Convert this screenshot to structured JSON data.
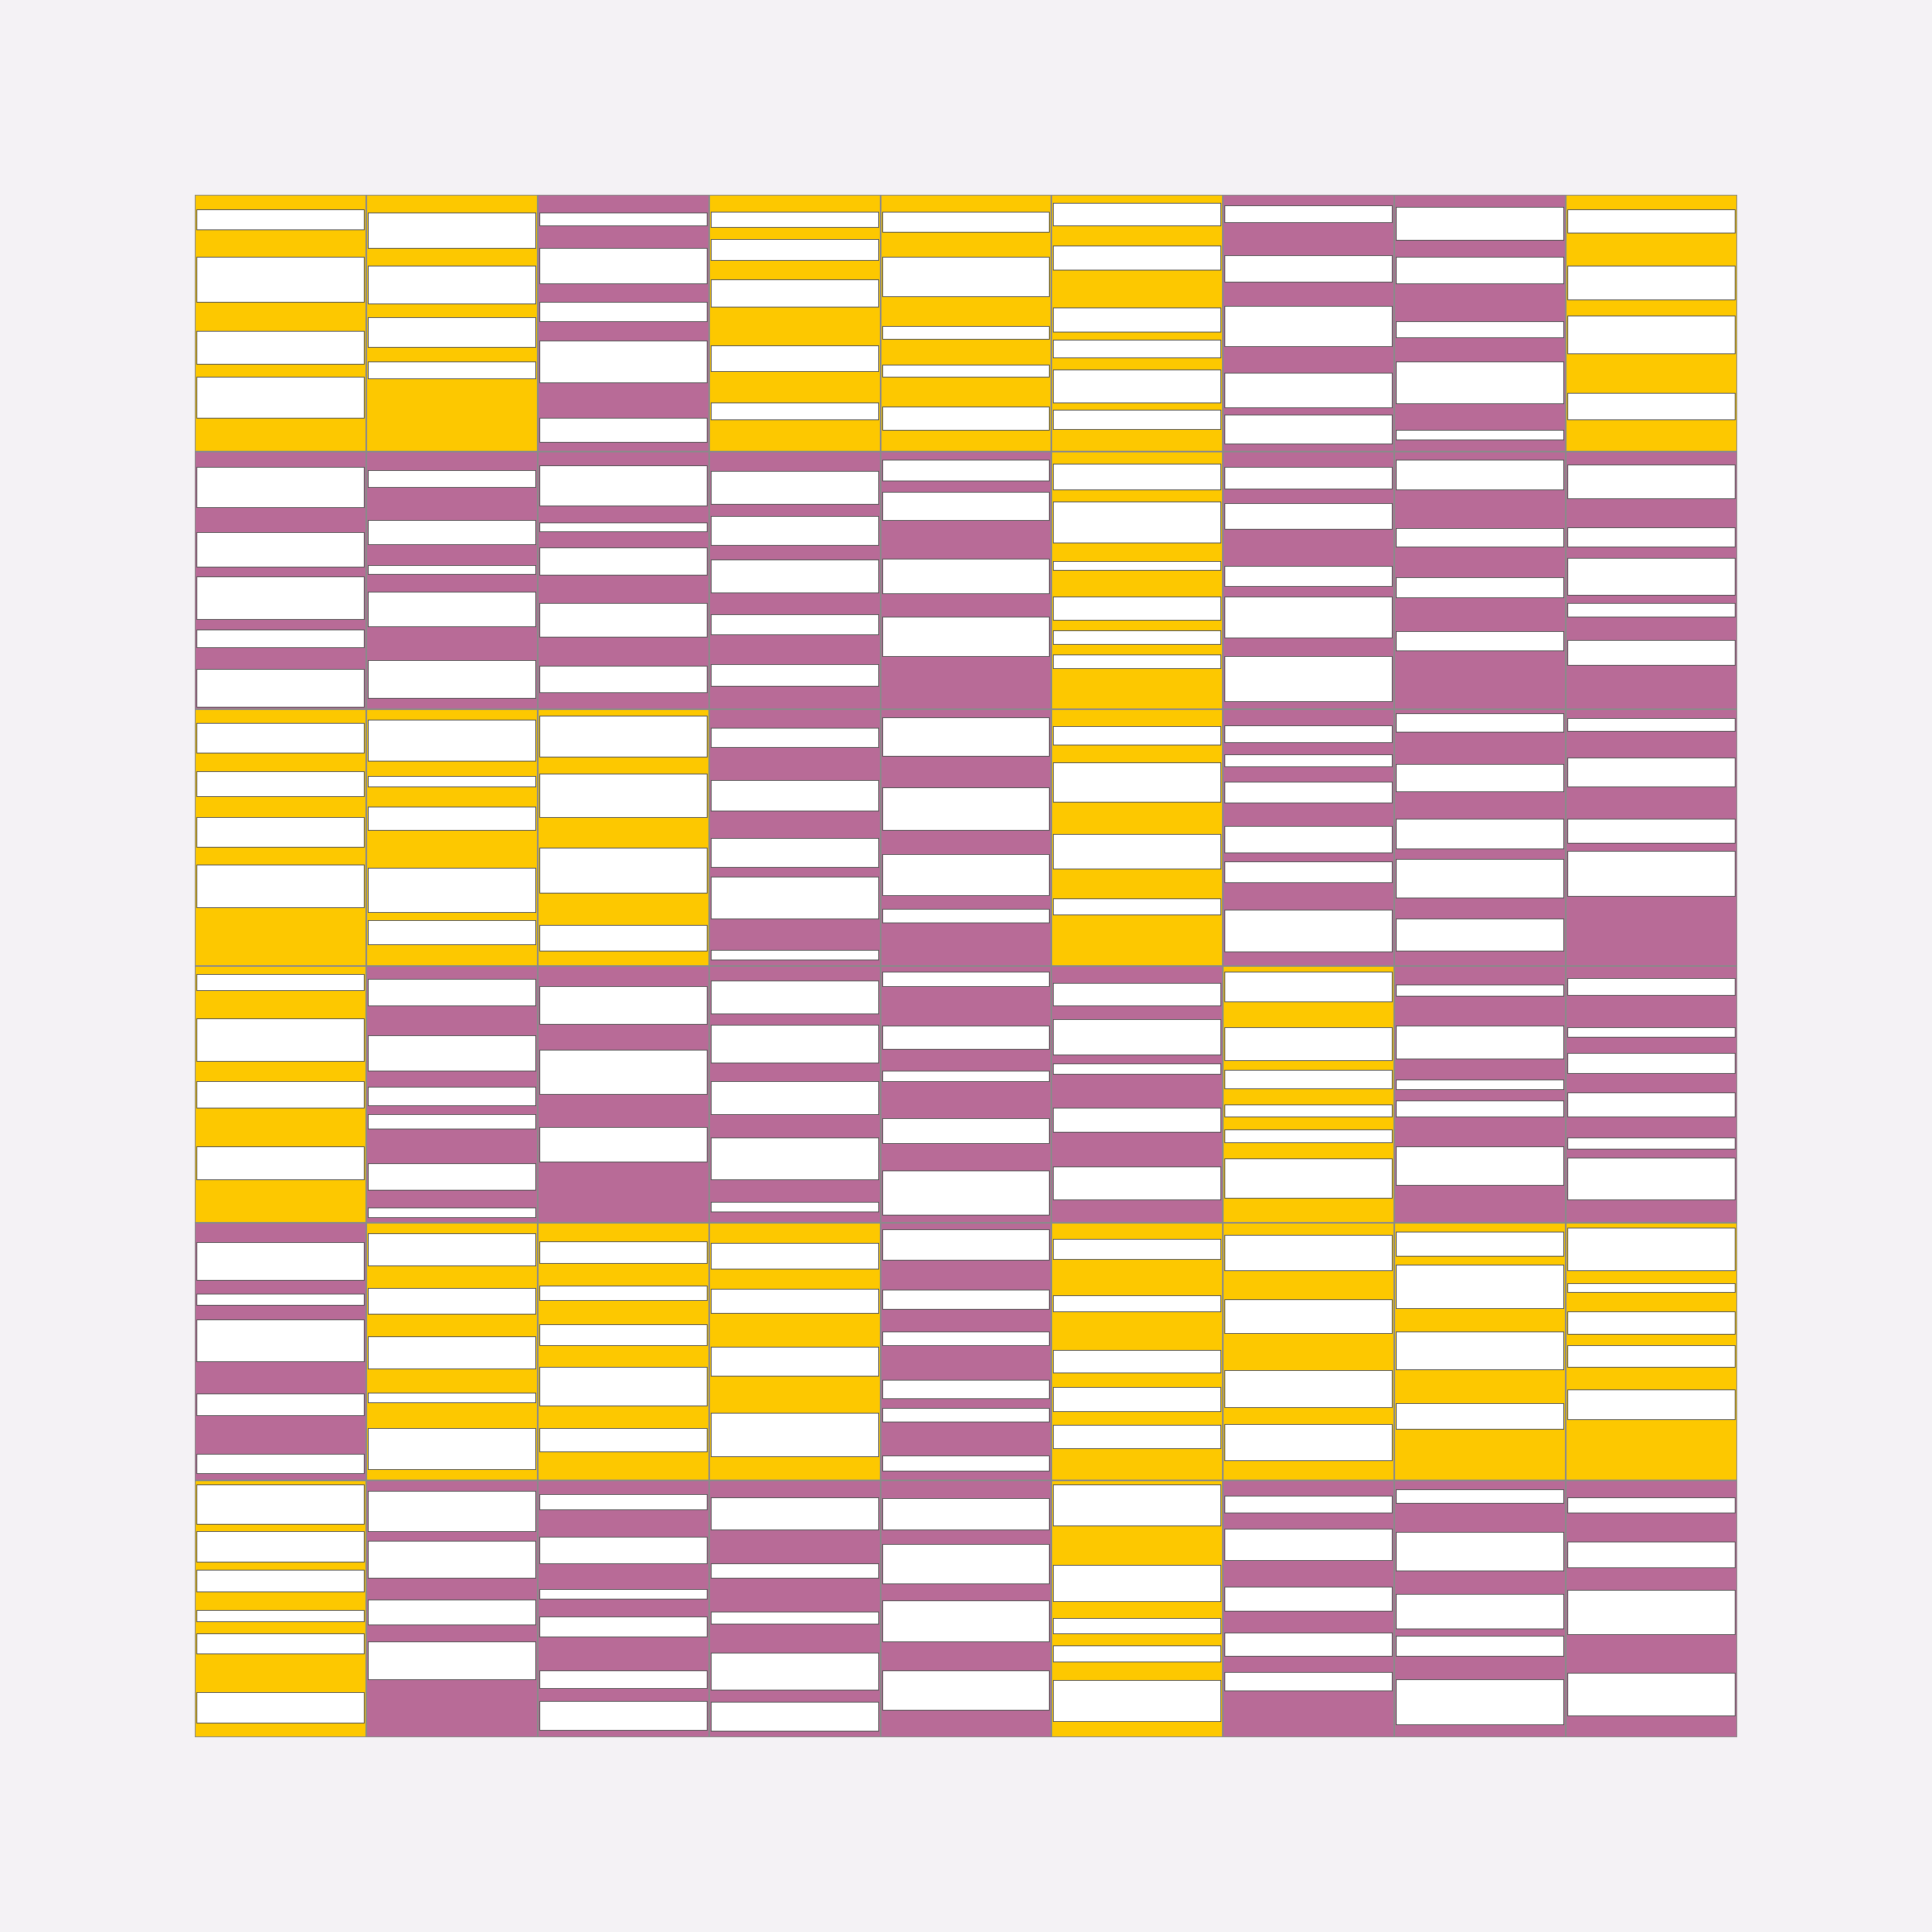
{
  "palette": {
    "yellow": "#FDC800",
    "purple": "#B86B97",
    "stripe": "#FFFFFF",
    "background": "#F4F2F5"
  },
  "grid": {
    "columns": 9,
    "rows": 6,
    "cells": [
      [
        "yellow",
        "yellow",
        "purple",
        "yellow",
        "yellow",
        "yellow",
        "purple",
        "purple",
        "yellow"
      ],
      [
        "purple",
        "purple",
        "purple",
        "purple",
        "purple",
        "yellow",
        "purple",
        "purple",
        "purple"
      ],
      [
        "yellow",
        "yellow",
        "yellow",
        "purple",
        "purple",
        "yellow",
        "purple",
        "purple",
        "purple"
      ],
      [
        "yellow",
        "purple",
        "purple",
        "purple",
        "purple",
        "purple",
        "yellow",
        "purple",
        "purple"
      ],
      [
        "purple",
        "yellow",
        "yellow",
        "yellow",
        "purple",
        "yellow",
        "yellow",
        "yellow",
        "yellow"
      ],
      [
        "yellow",
        "purple",
        "purple",
        "purple",
        "purple",
        "yellow",
        "purple",
        "purple",
        "purple"
      ]
    ]
  }
}
